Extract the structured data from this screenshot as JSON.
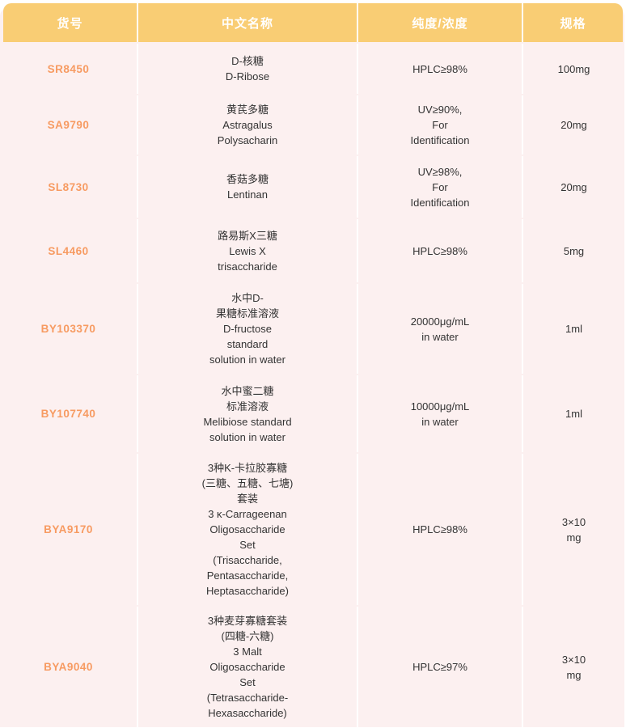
{
  "colors": {
    "header_bg": "#f9cd74",
    "header_text": "#ffffff",
    "code_text": "#f79b62",
    "cell_bg": "#fcf0f0",
    "divider": "#ffffff",
    "body_text": "#333333"
  },
  "table": {
    "headers": {
      "code": "货号",
      "name": "中文名称",
      "purity": "纯度/浓度",
      "spec": "规格"
    },
    "rows": [
      {
        "code": "SR8450",
        "name": "D-核糖\nD-Ribose",
        "purity": "HPLC≥98%",
        "spec": "100mg"
      },
      {
        "code": "SA9790",
        "name": "黄芪多糖\nAstragalus\nPolysacharin",
        "purity": "UV≥90%,\nFor\nIdentification",
        "spec": "20mg"
      },
      {
        "code": "SL8730",
        "name": "香菇多糖\nLentinan",
        "purity": "UV≥98%,\nFor\nIdentification",
        "spec": "20mg"
      },
      {
        "code": "SL4460",
        "name": "路易斯X三糖\nLewis X\ntrisaccharide",
        "purity": "HPLC≥98%",
        "spec": "5mg"
      },
      {
        "code": "BY103370",
        "name": "水中D-\n果糖标准溶液\nD-fructose\nstandard\nsolution in water",
        "purity": "20000μg/mL\nin water",
        "spec": "1ml"
      },
      {
        "code": "BY107740",
        "name": "水中蜜二糖\n标准溶液\nMelibiose standard\nsolution in water",
        "purity": "10000μg/mL\nin water",
        "spec": "1ml"
      },
      {
        "code": "BYA9170",
        "name": "3种K-卡拉胶寡糖\n(三糖、五糖、七塘)\n套装\n3 κ-Carrageenan\nOligosaccharide\nSet\n(Trisaccharide,\nPentasaccharide,\nHeptasaccharide)",
        "purity": "HPLC≥98%",
        "spec": "3×10\nmg"
      },
      {
        "code": "BYA9040",
        "name": "3种麦芽寡糖套装\n(四糖-六糖)\n3 Malt\nOligosaccharide\nSet\n(Tetrasaccharide-\nHexasaccharide)",
        "purity": "HPLC≥97%",
        "spec": "3×10\nmg"
      }
    ]
  }
}
